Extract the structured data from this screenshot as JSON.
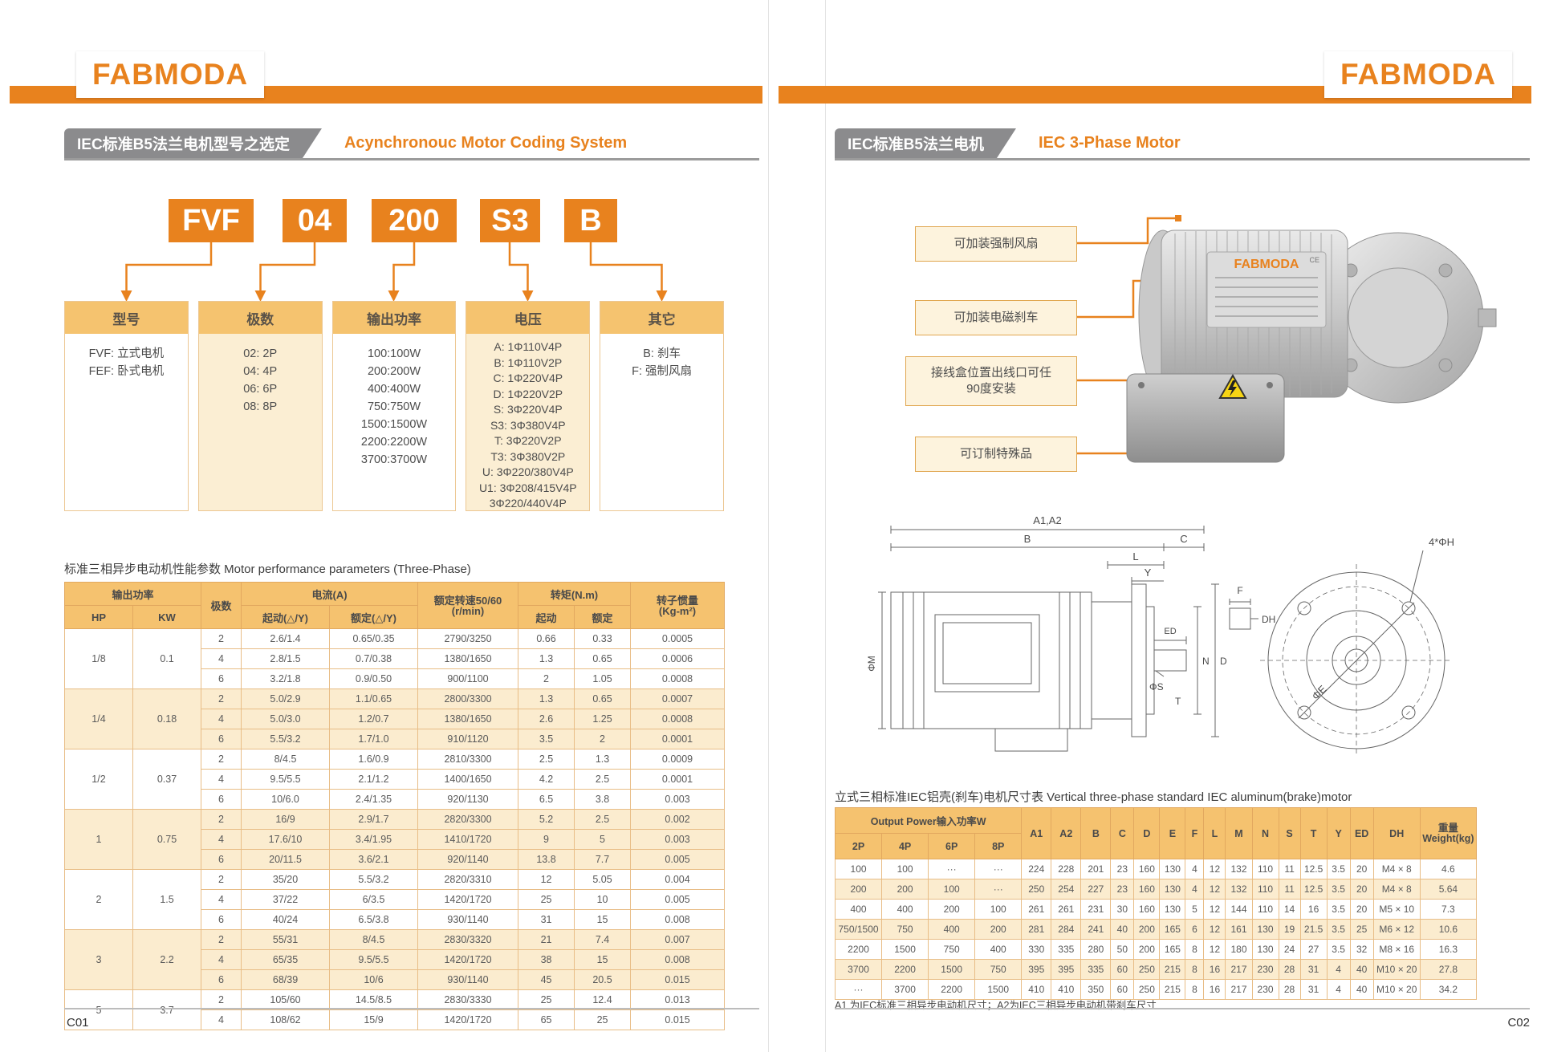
{
  "brand": "FABMODA",
  "colors": {
    "accent": "#E8821E",
    "tab_gray": "#8b8b8d",
    "table_header": "#f5c26f",
    "row_tan": "#fbeccf",
    "callout_bg": "#fdf3dd",
    "warning_yellow": "#f7d514"
  },
  "left_page": {
    "section": {
      "zh": "IEC标准B5法兰电机型号之选定",
      "en": "Acynchronouc Motor Coding System"
    },
    "code_boxes": [
      "FVF",
      "04",
      "200",
      "S3",
      "B"
    ],
    "categories": [
      {
        "title": "型号",
        "lines": [
          "FVF: 立式电机",
          "FEF: 卧式电机"
        ]
      },
      {
        "title": "极数",
        "lines": [
          "02: 2P",
          "04: 4P",
          "06: 6P",
          "08: 8P"
        ]
      },
      {
        "title": "输出功率",
        "lines": [
          "100:100W",
          "200:200W",
          "400:400W",
          "750:750W",
          "1500:1500W",
          "2200:2200W",
          "3700:3700W"
        ]
      },
      {
        "title": "电压",
        "lines": [
          "A: 1Φ110V4P",
          "B: 1Φ110V2P",
          "C: 1Φ220V4P",
          "D: 1Φ220V2P",
          "S: 3Φ220V4P",
          "S3: 3Φ380V4P",
          "T: 3Φ220V2P",
          "T3: 3Φ380V2P",
          "U: 3Φ220/380V4P",
          "U1: 3Φ208/415V4P",
          "3Φ220/440V4P"
        ]
      },
      {
        "title": "其它",
        "lines": [
          "B: 刹车",
          "F: 强制风扇"
        ]
      }
    ],
    "perf_table": {
      "title": "标准三相异步电动机性能参数 Motor performance parameters (Three-Phase)",
      "headers": {
        "power_group": "输出功率",
        "hp": "HP",
        "kw": "KW",
        "poles": "极数",
        "current_group": "电流(A)",
        "start_current": "起动(△/Y)",
        "rated_current": "额定(△/Y)",
        "speed_line1": "额定转速50/60",
        "speed_line2": "(r/min)",
        "torque_group": "转矩(N.m)",
        "start_torque": "起动",
        "rated_torque": "额定",
        "inertia_line1": "转子惯量",
        "inertia_line2": "(Kg-m²)"
      },
      "groups": [
        {
          "hp": "1/8",
          "kw": "0.1",
          "rows": [
            [
              "2",
              "2.6/1.4",
              "0.65/0.35",
              "2790/3250",
              "0.66",
              "0.33",
              "0.0005"
            ],
            [
              "4",
              "2.8/1.5",
              "0.7/0.38",
              "1380/1650",
              "1.3",
              "0.65",
              "0.0006"
            ],
            [
              "6",
              "3.2/1.8",
              "0.9/0.50",
              "900/1100",
              "2",
              "1.05",
              "0.0008"
            ]
          ]
        },
        {
          "hp": "1/4",
          "kw": "0.18",
          "rows": [
            [
              "2",
              "5.0/2.9",
              "1.1/0.65",
              "2800/3300",
              "1.3",
              "0.65",
              "0.0007"
            ],
            [
              "4",
              "5.0/3.0",
              "1.2/0.7",
              "1380/1650",
              "2.6",
              "1.25",
              "0.0008"
            ],
            [
              "6",
              "5.5/3.2",
              "1.7/1.0",
              "910/1120",
              "3.5",
              "2",
              "0.0001"
            ]
          ]
        },
        {
          "hp": "1/2",
          "kw": "0.37",
          "rows": [
            [
              "2",
              "8/4.5",
              "1.6/0.9",
              "2810/3300",
              "2.5",
              "1.3",
              "0.0009"
            ],
            [
              "4",
              "9.5/5.5",
              "2.1/1.2",
              "1400/1650",
              "4.2",
              "2.5",
              "0.0001"
            ],
            [
              "6",
              "10/6.0",
              "2.4/1.35",
              "920/1130",
              "6.5",
              "3.8",
              "0.003"
            ]
          ]
        },
        {
          "hp": "1",
          "kw": "0.75",
          "rows": [
            [
              "2",
              "16/9",
              "2.9/1.7",
              "2820/3300",
              "5.2",
              "2.5",
              "0.002"
            ],
            [
              "4",
              "17.6/10",
              "3.4/1.95",
              "1410/1720",
              "9",
              "5",
              "0.003"
            ],
            [
              "6",
              "20/11.5",
              "3.6/2.1",
              "920/1140",
              "13.8",
              "7.7",
              "0.005"
            ]
          ]
        },
        {
          "hp": "2",
          "kw": "1.5",
          "rows": [
            [
              "2",
              "35/20",
              "5.5/3.2",
              "2820/3310",
              "12",
              "5.05",
              "0.004"
            ],
            [
              "4",
              "37/22",
              "6/3.5",
              "1420/1720",
              "25",
              "10",
              "0.005"
            ],
            [
              "6",
              "40/24",
              "6.5/3.8",
              "930/1140",
              "31",
              "15",
              "0.008"
            ]
          ]
        },
        {
          "hp": "3",
          "kw": "2.2",
          "rows": [
            [
              "2",
              "55/31",
              "8/4.5",
              "2830/3320",
              "21",
              "7.4",
              "0.007"
            ],
            [
              "4",
              "65/35",
              "9.5/5.5",
              "1420/1720",
              "38",
              "15",
              "0.008"
            ],
            [
              "6",
              "68/39",
              "10/6",
              "930/1140",
              "45",
              "20.5",
              "0.015"
            ]
          ]
        },
        {
          "hp": "5",
          "kw": "3.7",
          "rows": [
            [
              "2",
              "105/60",
              "14.5/8.5",
              "2830/3330",
              "25",
              "12.4",
              "0.013"
            ],
            [
              "4",
              "108/62",
              "15/9",
              "1420/1720",
              "65",
              "25",
              "0.015"
            ]
          ]
        }
      ]
    },
    "page_no": "C01"
  },
  "right_page": {
    "section": {
      "zh": "IEC标准B5法兰电机",
      "en": "IEC 3-Phase Motor"
    },
    "motor_label": {
      "brand": "FABMODA",
      "ce": "CE"
    },
    "callouts": [
      {
        "lines": [
          "可加装强制风扇"
        ]
      },
      {
        "lines": [
          "可加装电磁刹车"
        ]
      },
      {
        "lines": [
          "接线盒位置出线口可任",
          "90度安装"
        ]
      },
      {
        "lines": [
          "可订制特殊品"
        ]
      }
    ],
    "drawing": {
      "overall": "A1,A2",
      "b": "B",
      "c": "C",
      "l": "L",
      "y": "Y",
      "ed": "ED",
      "phiM": "ΦM",
      "n": "N",
      "d": "D",
      "phiS": "ΦS",
      "t": "T",
      "f": "F",
      "dh": "DH",
      "holes": "4*ΦH",
      "phiE": "ΦE"
    },
    "dim_table": {
      "title": "立式三相标准IEC铝壳(刹车)电机尺寸表 Vertical three-phase standard IEC aluminum(brake)motor",
      "power_group": "Output Power输入功率W",
      "pole_cols": [
        "2P",
        "4P",
        "6P",
        "8P"
      ],
      "dim_cols": [
        "A1",
        "A2",
        "B",
        "C",
        "D",
        "E",
        "F",
        "L",
        "M",
        "N",
        "S",
        "T",
        "Y",
        "ED",
        "DH"
      ],
      "weight_line1": "重量",
      "weight_line2": "Weight(kg)",
      "rows": [
        [
          "100",
          "100",
          "···",
          "···",
          "224",
          "228",
          "201",
          "23",
          "160",
          "130",
          "4",
          "12",
          "132",
          "110",
          "11",
          "12.5",
          "3.5",
          "20",
          "M4 × 8",
          "4.6"
        ],
        [
          "200",
          "200",
          "100",
          "···",
          "250",
          "254",
          "227",
          "23",
          "160",
          "130",
          "4",
          "12",
          "132",
          "110",
          "11",
          "12.5",
          "3.5",
          "20",
          "M4 × 8",
          "5.64"
        ],
        [
          "400",
          "400",
          "200",
          "100",
          "261",
          "261",
          "231",
          "30",
          "160",
          "130",
          "5",
          "12",
          "144",
          "110",
          "14",
          "16",
          "3.5",
          "20",
          "M5 × 10",
          "7.3"
        ],
        [
          "750/1500",
          "750",
          "400",
          "200",
          "281",
          "284",
          "241",
          "40",
          "200",
          "165",
          "6",
          "12",
          "161",
          "130",
          "19",
          "21.5",
          "3.5",
          "25",
          "M6 × 12",
          "10.6"
        ],
        [
          "2200",
          "1500",
          "750",
          "400",
          "330",
          "335",
          "280",
          "50",
          "200",
          "165",
          "8",
          "12",
          "180",
          "130",
          "24",
          "27",
          "3.5",
          "32",
          "M8 × 16",
          "16.3"
        ],
        [
          "3700",
          "2200",
          "1500",
          "750",
          "395",
          "395",
          "335",
          "60",
          "250",
          "215",
          "8",
          "16",
          "217",
          "230",
          "28",
          "31",
          "4",
          "40",
          "M10 × 20",
          "27.8"
        ],
        [
          "···",
          "3700",
          "2200",
          "1500",
          "410",
          "410",
          "350",
          "60",
          "250",
          "215",
          "8",
          "16",
          "217",
          "230",
          "28",
          "31",
          "4",
          "40",
          "M10 × 20",
          "34.2"
        ]
      ]
    },
    "footnote": "A1 为IEC标准三相异步电动机尺寸；A2为IEC三相异步电动机带刹车尺寸",
    "page_no": "C02"
  }
}
